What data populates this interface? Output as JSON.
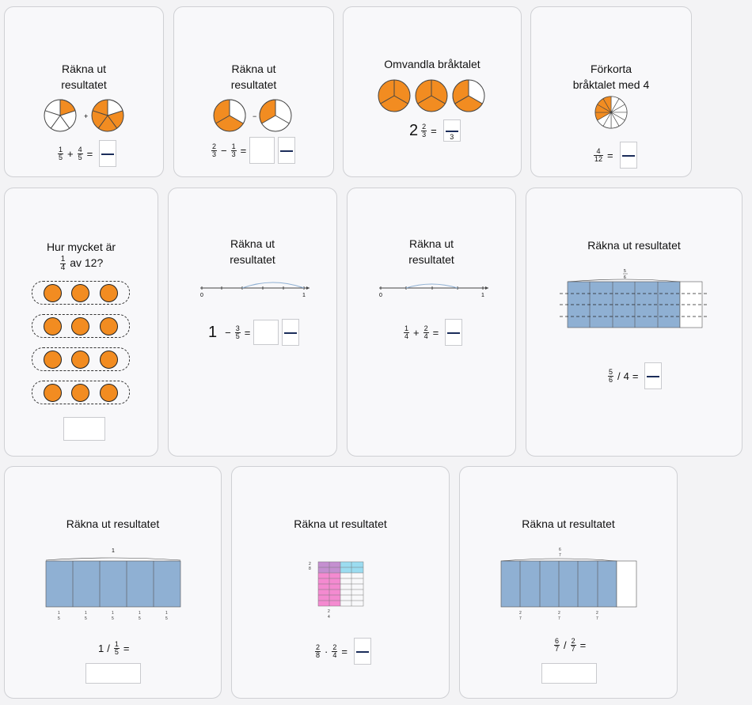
{
  "cards": {
    "c1": {
      "title_l1": "Räkna ut",
      "title_l2": "resultatet",
      "a_n": "1",
      "a_d": "5",
      "op": "+",
      "b_n": "4",
      "b_d": "5",
      "eq": "=",
      "pie_op": "+"
    },
    "c2": {
      "title_l1": "Räkna ut",
      "title_l2": "resultatet",
      "a_n": "2",
      "a_d": "3",
      "op": "−",
      "b_n": "1",
      "b_d": "3",
      "eq": "=",
      "pie_op": "−"
    },
    "c3": {
      "title": "Omvandla bråktalet",
      "whole": "2",
      "a_n": "2",
      "a_d": "3",
      "eq": "=",
      "ans_d": "3"
    },
    "c4": {
      "title_l1": "Förkorta",
      "title_l2": "bråktalet med 4",
      "a_n": "4",
      "a_d": "12",
      "eq": "="
    },
    "c5": {
      "title_l1": "Hur mycket är",
      "n": "1",
      "d": "4",
      "title_tail": "av 12?"
    },
    "c6": {
      "title_l1": "Räkna ut",
      "title_l2": "resultatet",
      "whole": "1",
      "op": "−",
      "a_n": "3",
      "a_d": "5",
      "eq": "=",
      "nl_start": "0",
      "nl_end": "1"
    },
    "c7": {
      "title_l1": "Räkna ut",
      "title_l2": "resultatet",
      "a_n": "1",
      "a_d": "4",
      "op": "+",
      "b_n": "2",
      "b_d": "4",
      "eq": "=",
      "nl_start": "0",
      "nl_end": "1"
    },
    "c8": {
      "title": "Räkna ut resultatet",
      "a_n": "5",
      "a_d": "6",
      "op": "/",
      "b": "4",
      "eq": "=",
      "bar_n": "5",
      "bar_d": "6"
    },
    "c9": {
      "title": "Räkna ut resultatet",
      "a": "1",
      "op": "/",
      "b_n": "1",
      "b_d": "5",
      "eq": "=",
      "bar_top": "1",
      "seg_n": "1",
      "seg_d": "5"
    },
    "c10": {
      "title": "Räkna ut resultatet",
      "a_n": "2",
      "a_d": "8",
      "op": "·",
      "b_n": "2",
      "b_d": "4",
      "eq": "=",
      "side_n": "2",
      "side_d": "8",
      "bot_n": "2",
      "bot_d": "4"
    },
    "c11": {
      "title": "Räkna ut resultatet",
      "a_n": "6",
      "a_d": "7",
      "op": "/",
      "b_n": "2",
      "b_d": "7",
      "eq": "=",
      "bar_n": "6",
      "bar_d": "7",
      "seg_n": "2",
      "seg_d": "7"
    }
  },
  "colors": {
    "orange": "#f28c21",
    "blue": "#8fb0d3",
    "pink": "#f48ad0",
    "cyan": "#9bdcf0",
    "purple": "#c48fd0"
  }
}
